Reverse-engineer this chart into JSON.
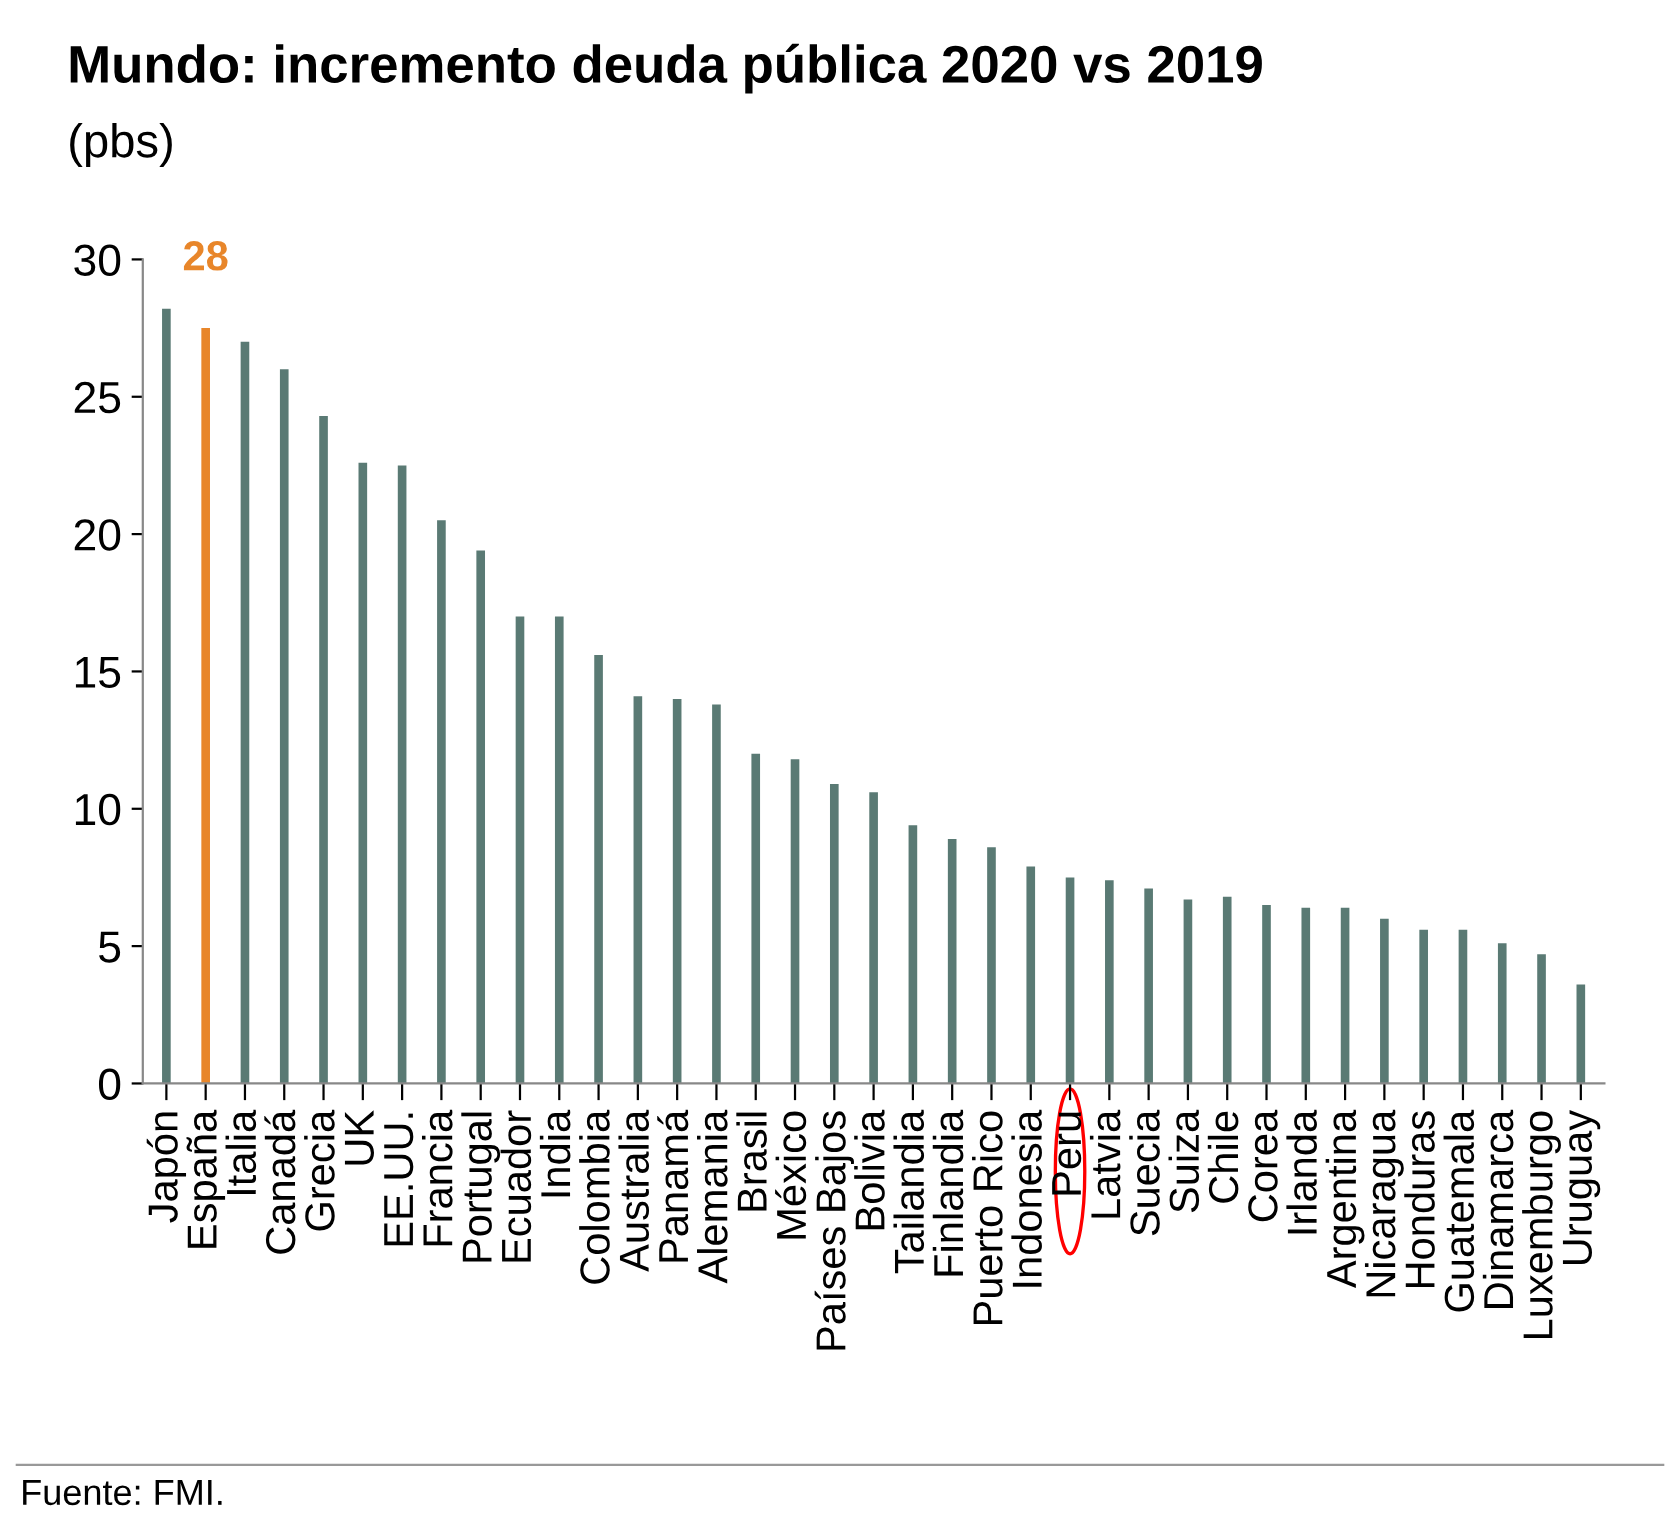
{
  "chart_data": {
    "type": "bar",
    "title": "Mundo: incremento deuda pública 2020 vs 2019",
    "subtitle": "(pbs)",
    "categories": [
      "Japón",
      "España",
      "Italia",
      "Canadá",
      "Grecia",
      "UK",
      "EE.UU.",
      "Francia",
      "Portugal",
      "Ecuador",
      "India",
      "Colombia",
      "Australia",
      "Panamá",
      "Alemania",
      "Brasil",
      "México",
      "Países Bajos",
      "Bolivia",
      "Tailandia",
      "Finlandia",
      "Puerto Rico",
      "Indonesia",
      "Peru",
      "Latvia",
      "Suecia",
      "Suiza",
      "Chile",
      "Corea",
      "Irlanda",
      "Argentina",
      "Nicaragua",
      "Honduras",
      "Guatemala",
      "Dinamarca",
      "Luxemburgo",
      "Uruguay"
    ],
    "values": [
      28.2,
      27.5,
      27.0,
      26.0,
      24.3,
      22.6,
      22.5,
      20.5,
      19.4,
      17.0,
      17.0,
      15.6,
      14.1,
      14.0,
      13.8,
      12.0,
      11.8,
      10.9,
      10.6,
      9.4,
      8.9,
      8.6,
      7.9,
      7.5,
      7.4,
      7.1,
      6.7,
      6.8,
      6.5,
      6.4,
      6.4,
      6.0,
      5.6,
      5.6,
      5.1,
      4.7,
      3.6
    ],
    "colors": [
      "#5a7a74",
      "#e8862a",
      "#5a7a74",
      "#5a7a74",
      "#5a7a74",
      "#5a7a74",
      "#5a7a74",
      "#5a7a74",
      "#5a7a74",
      "#5a7a74",
      "#5a7a74",
      "#5a7a74",
      "#5a7a74",
      "#5a7a74",
      "#5a7a74",
      "#5a7a74",
      "#5a7a74",
      "#5a7a74",
      "#5a7a74",
      "#5a7a74",
      "#5a7a74",
      "#5a7a74",
      "#5a7a74",
      "#5a7a74",
      "#5a7a74",
      "#5a7a74",
      "#5a7a74",
      "#5a7a74",
      "#5a7a74",
      "#5a7a74",
      "#5a7a74",
      "#5a7a74",
      "#5a7a74",
      "#5a7a74",
      "#5a7a74",
      "#5a7a74",
      "#5a7a74"
    ],
    "value_labels": [
      null,
      "28",
      null,
      null,
      null,
      null,
      null,
      null,
      null,
      null,
      null,
      null,
      null,
      null,
      null,
      null,
      null,
      null,
      null,
      null,
      null,
      null,
      null,
      null,
      null,
      null,
      null,
      null,
      null,
      null,
      null,
      null,
      null,
      null,
      null,
      null,
      null
    ],
    "ylim": [
      0,
      30
    ],
    "yticks": [
      0,
      5,
      10,
      15,
      20,
      25,
      30
    ],
    "grid": false,
    "legend": false,
    "annotations": [
      "Fuente: FMI."
    ]
  }
}
